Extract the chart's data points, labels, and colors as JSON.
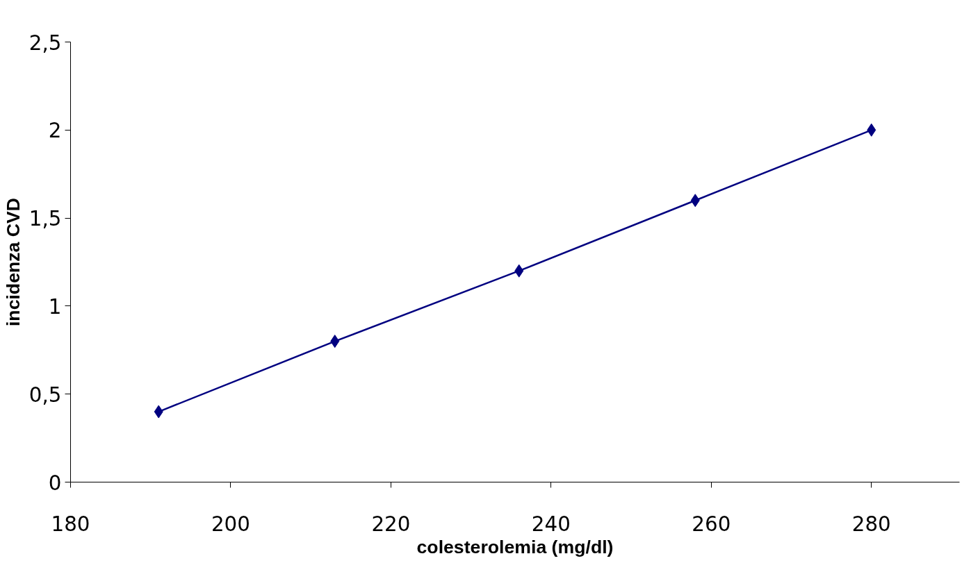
{
  "chart_data": {
    "type": "line",
    "xlabel": "colesterolemia (mg/dl)",
    "ylabel": "incidenza CVD",
    "x": [
      191,
      213,
      236,
      258,
      280
    ],
    "series": [
      {
        "color": "#000080",
        "values": [
          0.4,
          0.8,
          1.2,
          1.6,
          2.0
        ]
      }
    ],
    "xlim": [
      180,
      291
    ],
    "xticks": [
      180,
      200,
      220,
      240,
      260,
      280
    ],
    "ylim": [
      0,
      2.5
    ],
    "yticks": [
      0,
      {
        "value": 0.5,
        "label": "0,5"
      },
      1,
      {
        "value": 1.5,
        "label": "1,5"
      },
      2,
      {
        "value": 2.5,
        "label": "2,5"
      }
    ],
    "marker": "diamond",
    "line_style": "solid",
    "grid": false
  }
}
